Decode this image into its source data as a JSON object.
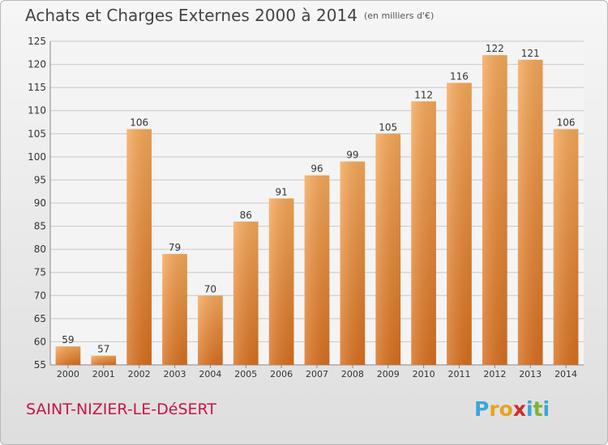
{
  "header": {
    "title": "Achats et Charges Externes 2000 à 2014",
    "subtitle": "(en milliers d'€)"
  },
  "footer": {
    "town": "SAINT-NIZIER-LE-DéSERT",
    "logo_letters": [
      "P",
      "r",
      "o",
      "x",
      "i",
      "t",
      "i"
    ],
    "logo_colors": [
      "#3aa6d8",
      "#e8a21c",
      "#e8a21c",
      "#d12c2c",
      "#3aa6d8",
      "#7bb534",
      "#3aa6d8"
    ]
  },
  "colors": {
    "bar_light": "#f7a95a",
    "bar_dark": "#d9701f",
    "grid": "#c8c8c8",
    "axis_text": "#333333"
  },
  "chart_data": {
    "type": "bar",
    "title": "Achats et Charges Externes 2000 à 2014",
    "subtitle": "(en milliers d'€)",
    "xlabel": "",
    "ylabel": "",
    "categories": [
      "2000",
      "2001",
      "2002",
      "2003",
      "2004",
      "2005",
      "2006",
      "2007",
      "2008",
      "2009",
      "2010",
      "2011",
      "2012",
      "2013",
      "2014"
    ],
    "values": [
      59,
      57,
      106,
      79,
      70,
      86,
      91,
      96,
      99,
      105,
      112,
      116,
      122,
      121,
      106
    ],
    "ylim": [
      55,
      125
    ],
    "yticks": [
      55,
      60,
      65,
      70,
      75,
      80,
      85,
      90,
      95,
      100,
      105,
      110,
      115,
      120,
      125
    ],
    "grid": true,
    "data_labels": true
  }
}
